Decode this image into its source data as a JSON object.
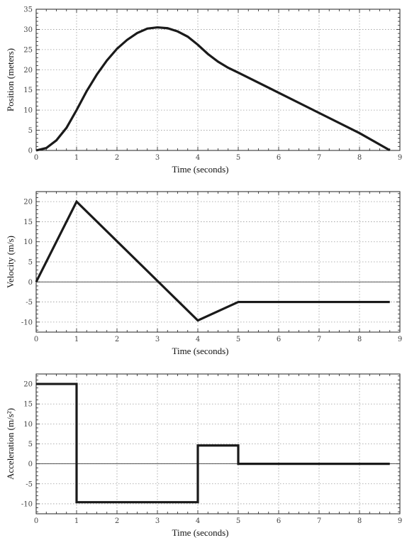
{
  "chart_data": [
    {
      "type": "line",
      "xlabel": "Time (seconds)",
      "ylabel": "Position (meters)",
      "xlim": [
        0,
        9
      ],
      "ylim": [
        0,
        35
      ],
      "xticks": [
        0,
        1,
        2,
        3,
        4,
        5,
        6,
        7,
        8,
        9
      ],
      "yticks": [
        0,
        5,
        10,
        15,
        20,
        25,
        30,
        35
      ],
      "grid": true,
      "zero_line": false,
      "series": [
        {
          "x": [
            0,
            0.25,
            0.5,
            0.75,
            1,
            1.25,
            1.5,
            1.75,
            2,
            2.25,
            2.5,
            2.75,
            3,
            3.25,
            3.5,
            3.75,
            4,
            4.25,
            4.5,
            4.75,
            5,
            6,
            7,
            8,
            8.75
          ],
          "y": [
            0,
            0.6,
            2.5,
            5.6,
            10,
            14.7,
            18.8,
            22.3,
            25.2,
            27.4,
            29.1,
            30.2,
            30.5,
            30.3,
            29.5,
            28.2,
            26.2,
            23.9,
            22,
            20.5,
            19.3,
            14.3,
            9.3,
            4.3,
            0.05
          ]
        }
      ]
    },
    {
      "type": "line",
      "xlabel": "Time (seconds)",
      "ylabel": "Velocity (m/s)",
      "xlim": [
        0,
        9
      ],
      "ylim": [
        -12.5,
        22.5
      ],
      "xticks": [
        0,
        1,
        2,
        3,
        4,
        5,
        6,
        7,
        8,
        9
      ],
      "yticks": [
        -10,
        -5,
        0,
        5,
        10,
        15,
        20
      ],
      "grid": true,
      "zero_line": true,
      "series": [
        {
          "x": [
            0,
            1,
            4,
            5,
            8.75
          ],
          "y": [
            0,
            20,
            -9.6,
            -5,
            -5
          ]
        }
      ]
    },
    {
      "type": "line",
      "xlabel": "Time (seconds)",
      "ylabel": "Acceleration (m/s²)",
      "xlim": [
        0,
        9
      ],
      "ylim": [
        -12.5,
        22.5
      ],
      "xticks": [
        0,
        1,
        2,
        3,
        4,
        5,
        6,
        7,
        8,
        9
      ],
      "yticks": [
        -10,
        -5,
        0,
        5,
        10,
        15,
        20
      ],
      "grid": true,
      "zero_line": true,
      "series": [
        {
          "x": [
            0,
            1,
            1,
            4,
            4,
            5,
            5,
            8.75
          ],
          "y": [
            20,
            20,
            -9.6,
            -9.6,
            4.6,
            4.6,
            0,
            0
          ]
        }
      ]
    }
  ]
}
